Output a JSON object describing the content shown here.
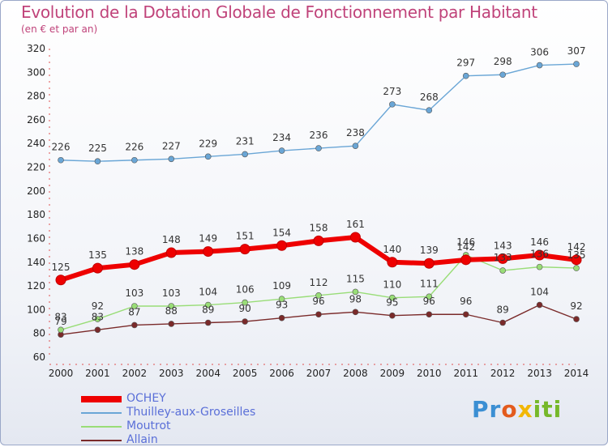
{
  "chart_data": {
    "type": "line",
    "title": "Evolution de la Dotation Globale de Fonctionnement par Habitant",
    "subtitle": "(en € et par an)",
    "xlabel": "",
    "ylabel": "",
    "ylim": [
      60,
      320
    ],
    "yticks": [
      60,
      80,
      100,
      120,
      140,
      160,
      180,
      200,
      220,
      240,
      260,
      280,
      300,
      320
    ],
    "categories": [
      "2000",
      "2001",
      "2002",
      "2003",
      "2004",
      "2005",
      "2006",
      "2007",
      "2008",
      "2009",
      "2010",
      "2011",
      "2012",
      "2013",
      "2014"
    ],
    "series": [
      {
        "name": "OCHEY",
        "color": "#ee0000",
        "values": [
          125,
          135,
          138,
          148,
          149,
          151,
          154,
          158,
          161,
          140,
          139,
          142,
          143,
          146,
          142
        ]
      },
      {
        "name": "Thuilley-aux-Groseilles",
        "color": "#6aa6d6",
        "values": [
          226,
          225,
          226,
          227,
          229,
          231,
          234,
          236,
          238,
          273,
          268,
          297,
          298,
          306,
          307
        ]
      },
      {
        "name": "Moutrot",
        "color": "#99dd77",
        "values": [
          83,
          92,
          103,
          103,
          104,
          106,
          109,
          112,
          115,
          110,
          111,
          146,
          133,
          136,
          135
        ]
      },
      {
        "name": "Allain",
        "color": "#7a2a2a",
        "values": [
          79,
          83,
          87,
          88,
          89,
          90,
          93,
          96,
          98,
          95,
          96,
          96,
          89,
          104,
          92
        ]
      }
    ],
    "grid": false,
    "legend": "bottom-left"
  },
  "legend_text_color": "#5a6fd8",
  "logo": {
    "parts": [
      "Pr",
      "o",
      "x",
      "iti"
    ]
  }
}
